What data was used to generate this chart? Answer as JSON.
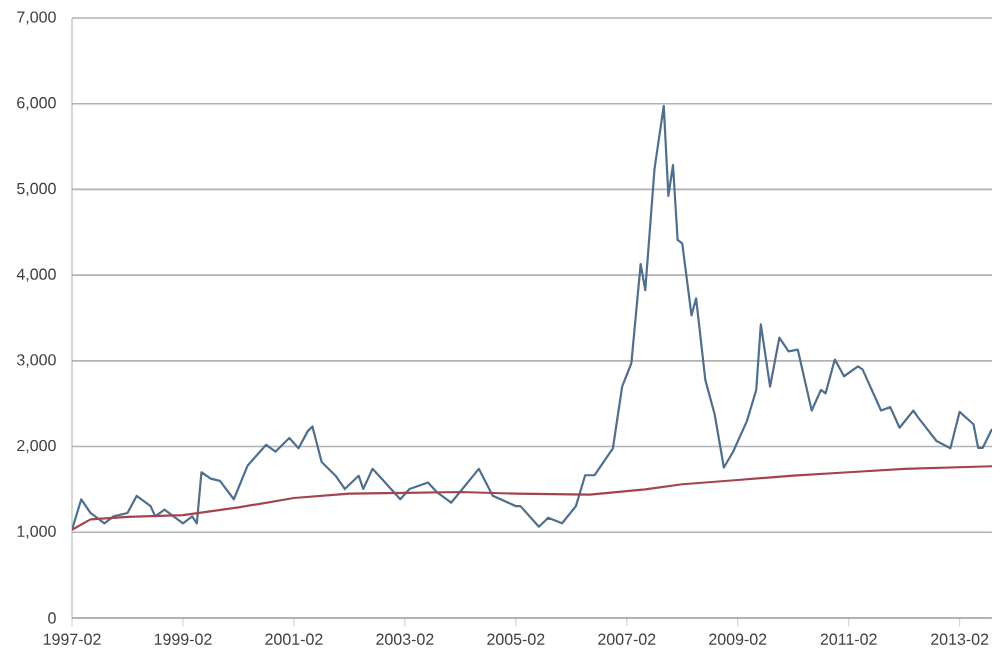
{
  "chart_data": {
    "type": "line",
    "grid": "y",
    "line_style": "solid",
    "xlim": [
      "1997-02",
      "2013-09"
    ],
    "ylim": [
      0,
      7000
    ],
    "xticks": [
      "1997-02",
      "1999-02",
      "2001-02",
      "2003-02",
      "2005-02",
      "2007-02",
      "2009-02",
      "2011-02",
      "2013-02"
    ],
    "yticks": [
      0,
      {
        "value": 1000,
        "label": "1,000"
      },
      {
        "value": 2000,
        "label": "2,000"
      },
      {
        "value": 3000,
        "label": "3,000"
      },
      {
        "value": 4000,
        "label": "4,000"
      },
      {
        "value": 5000,
        "label": "5,000"
      },
      {
        "value": 6000,
        "label": "6,000"
      },
      {
        "value": 7000,
        "label": "7,000"
      }
    ],
    "series": [
      {
        "color": "#4f6f8c",
        "x": [
          "1997-02",
          "1997-04",
          "1997-06",
          "1997-09",
          "1997-11",
          "1998-02",
          "1998-04",
          "1998-07",
          "1998-08",
          "1998-10",
          "1999-02",
          "1999-04",
          "1999-05",
          "1999-06",
          "1999-08",
          "1999-10",
          "2000-01",
          "2000-04",
          "2000-08",
          "2000-10",
          "2001-01",
          "2001-03",
          "2001-05",
          "2001-06",
          "2001-08",
          "2001-11",
          "2002-01",
          "2002-04",
          "2002-05",
          "2002-07",
          "2002-09",
          "2003-01",
          "2003-03",
          "2003-07",
          "2003-09",
          "2003-12",
          "2004-06",
          "2004-09",
          "2005-02",
          "2005-03",
          "2005-07",
          "2005-09",
          "2005-12",
          "2006-03",
          "2006-05",
          "2006-07",
          "2006-11",
          "2007-01",
          "2007-03",
          "2007-05",
          "2007-06",
          "2007-08",
          "2007-10",
          "2007-11",
          "2007-12",
          "2008-01",
          "2008-02",
          "2008-04",
          "2008-05",
          "2008-07",
          "2008-09",
          "2008-11",
          "2009-01",
          "2009-04",
          "2009-06",
          "2009-07",
          "2009-09",
          "2009-11",
          "2010-01",
          "2010-03",
          "2010-06",
          "2010-08",
          "2010-09",
          "2010-11",
          "2011-01",
          "2011-04",
          "2011-05",
          "2011-09",
          "2011-11",
          "2012-01",
          "2012-04",
          "2012-05",
          "2012-09",
          "2012-12",
          "2013-02",
          "2013-05",
          "2013-06",
          "2013-07",
          "2013-09"
        ],
        "values": [
          1030,
          1385,
          1225,
          1105,
          1185,
          1225,
          1425,
          1305,
          1185,
          1265,
          1105,
          1185,
          1105,
          1700,
          1625,
          1600,
          1385,
          1780,
          2020,
          1940,
          2100,
          1980,
          2180,
          2235,
          1820,
          1660,
          1505,
          1660,
          1505,
          1740,
          1625,
          1385,
          1505,
          1580,
          1465,
          1345,
          1740,
          1425,
          1305,
          1305,
          1065,
          1170,
          1105,
          1305,
          1665,
          1665,
          1980,
          2700,
          2975,
          4130,
          3825,
          5240,
          5975,
          4925,
          5285,
          4410,
          4370,
          3530,
          3730,
          2775,
          2380,
          1755,
          1940,
          2300,
          2660,
          3425,
          2700,
          3270,
          3110,
          3130,
          2420,
          2660,
          2620,
          3015,
          2820,
          2935,
          2900,
          2420,
          2460,
          2220,
          2420,
          2340,
          2065,
          1980,
          2405,
          2260,
          1985,
          1985,
          2205
        ]
      },
      {
        "color": "#a3434d",
        "x": [
          "1997-02",
          "1997-06",
          "1998-02",
          "1999-02",
          "2000-02",
          "2001-02",
          "2002-02",
          "2003-02",
          "2004-02",
          "2005-02",
          "2006-06",
          "2007-06",
          "2008-02",
          "2009-02",
          "2010-02",
          "2011-02",
          "2012-02",
          "2013-09"
        ],
        "values": [
          1030,
          1150,
          1180,
          1200,
          1290,
          1400,
          1450,
          1460,
          1470,
          1450,
          1440,
          1500,
          1560,
          1610,
          1660,
          1700,
          1740,
          1770
        ]
      }
    ]
  }
}
